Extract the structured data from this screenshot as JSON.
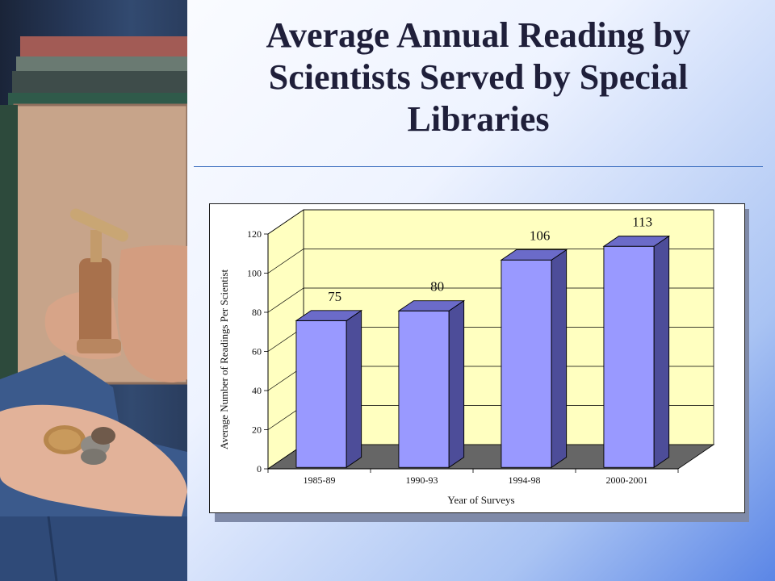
{
  "slide": {
    "title": "Average Annual Reading by Scientists Served by Special Libraries"
  },
  "chart_data": {
    "type": "bar",
    "categories": [
      "1985-89",
      "1990-93",
      "1994-98",
      "2000-2001"
    ],
    "values": [
      75,
      80,
      106,
      113
    ],
    "data_labels": [
      "75",
      "80",
      "106",
      "113"
    ],
    "xlabel": "Year of Surveys",
    "ylabel": "Average Number of Readings Per Scientist",
    "ylim": [
      0,
      120
    ],
    "yticks": [
      0,
      20,
      40,
      60,
      80,
      100,
      120
    ],
    "grid": true,
    "legend": "none",
    "style": "3d-column",
    "colors": {
      "bar_front": "#9999ff",
      "bar_side": "#4d4d99",
      "bar_top": "#6b6bc9",
      "wall": "#ffffc0",
      "floor": "#666666"
    }
  }
}
